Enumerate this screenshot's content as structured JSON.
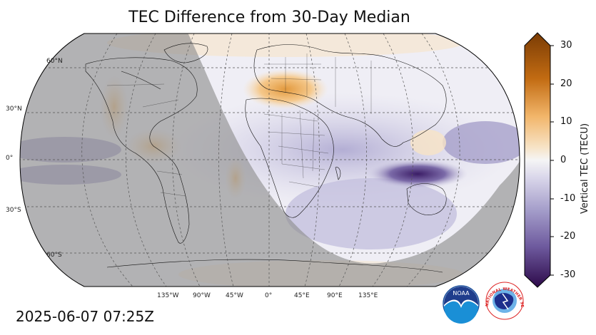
{
  "title": "TEC Difference from 30-Day Median",
  "timestamp": "2025-06-07 07:25Z",
  "colorbar": {
    "label": "Vertical TEC (TECU)",
    "ticks": [
      "30",
      "20",
      "10",
      "0",
      "-10",
      "-20",
      "-30"
    ],
    "range": [
      -30,
      30
    ],
    "colors": {
      "max": "#7a3c05",
      "high": "#d98a2a",
      "mid_high": "#f7d9a8",
      "zero": "#f5f5f5",
      "mid_low": "#c9c6e0",
      "low": "#7b6aa8",
      "min": "#2d0a4a"
    }
  },
  "map": {
    "lat_labels": [
      "60°N",
      "30°N",
      "0°",
      "30°S",
      "60°S"
    ],
    "lon_labels": [
      "135°W",
      "90°W",
      "45°W",
      "0°",
      "45°E",
      "90°E",
      "135°E"
    ],
    "night_shade_color": "#8c8c8c"
  },
  "logos": {
    "noaa": "NOAA",
    "nws": "NATIONAL WEATHER SERVICE"
  }
}
